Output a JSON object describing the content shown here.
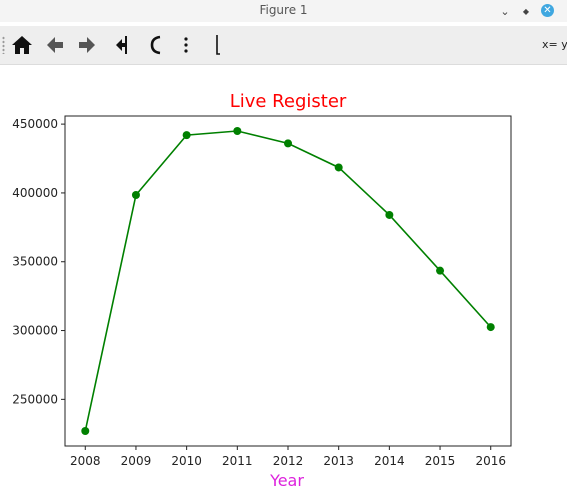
{
  "window": {
    "title": "Figure 1",
    "minimize_icon": "chevron-down-icon",
    "restore_icon": "diamond-icon",
    "close_icon": "close-icon"
  },
  "toolbar": {
    "buttons": [
      {
        "name": "home",
        "icon": "home-icon"
      },
      {
        "name": "back",
        "icon": "arrow-left-icon"
      },
      {
        "name": "forward",
        "icon": "arrow-right-icon"
      },
      {
        "name": "pan",
        "icon": "pan-icon"
      },
      {
        "name": "zoom",
        "icon": "zoom-icon"
      },
      {
        "name": "subplots",
        "icon": "subplots-icon"
      },
      {
        "name": "save",
        "icon": "save-icon"
      }
    ],
    "coord_readout": "x= y"
  },
  "colors": {
    "title": "#ff0000",
    "xlabel": "#dd22dd",
    "line": "#008000"
  },
  "chart_data": {
    "type": "line",
    "title": "Live Register",
    "xlabel": "Year",
    "ylabel": "",
    "x": [
      2008,
      2009,
      2010,
      2011,
      2012,
      2013,
      2014,
      2015,
      2016
    ],
    "series": [
      {
        "values": [
          227000,
          398500,
          442000,
          445000,
          436000,
          418500,
          384000,
          343500,
          302500
        ],
        "color": "#008000",
        "marker": "circle"
      }
    ],
    "xticks": [
      "2008",
      "2009",
      "2010",
      "2011",
      "2012",
      "2013",
      "2014",
      "2015",
      "2016"
    ],
    "yticks": [
      250000,
      300000,
      350000,
      400000,
      450000
    ],
    "ytick_labels": [
      "250000",
      "300000",
      "350000",
      "400000",
      "450000"
    ],
    "xlim": [
      2007.6,
      2016.4
    ],
    "ylim": [
      216100,
      455900
    ],
    "grid": false,
    "legend": "none"
  }
}
